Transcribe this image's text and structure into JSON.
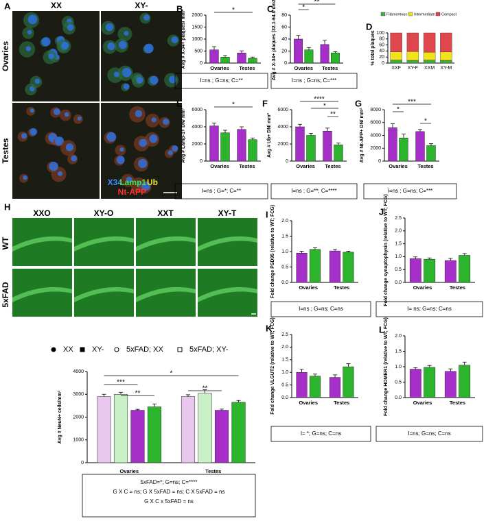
{
  "panel_a": {
    "label": "A",
    "columns": [
      "XX",
      "XY-"
    ],
    "rows": [
      "Ovaries",
      "Testes"
    ],
    "stains": [
      "X34",
      "Lamp1",
      "Ub",
      "Nt-APP"
    ]
  },
  "panel_h_images": {
    "label": "H",
    "columns": [
      "XXO",
      "XY-O",
      "XXT",
      "XY-T"
    ],
    "rows": [
      "WT",
      "5xFAD"
    ]
  },
  "chart_data": [
    {
      "type": "bar",
      "panel": "B",
      "ylabel": "Avg # X-34+ plaques/ mm²",
      "groups": [
        "Ovaries",
        "Testes"
      ],
      "ylim": [
        0,
        2000
      ],
      "yticks": [
        0,
        500,
        1000,
        1500,
        2000
      ],
      "series": [
        {
          "color": "#a52fc8",
          "values": [
            550,
            420
          ],
          "errors": [
            130,
            90
          ]
        },
        {
          "color": "#2cb52c",
          "values": [
            250,
            200
          ],
          "errors": [
            60,
            50
          ]
        }
      ],
      "significance": [
        "*"
      ],
      "stats": [
        "I=ns ; G=ns; C=**"
      ]
    },
    {
      "type": "bar",
      "panel": "C",
      "ylabel": "Avg # X-34+ plaques (32.1-64.0 um2)",
      "groups": [
        "Ovaries",
        "Testes"
      ],
      "ylim": [
        0,
        80
      ],
      "yticks": [
        0,
        20,
        40,
        60,
        80
      ],
      "series": [
        {
          "color": "#a52fc8",
          "values": [
            40,
            31
          ],
          "errors": [
            6,
            7
          ]
        },
        {
          "color": "#2cb52c",
          "values": [
            22,
            17
          ],
          "errors": [
            4,
            2
          ]
        }
      ],
      "significance": [
        "*",
        "**"
      ],
      "stats": [
        "I=ns ; G=ns; C=***"
      ]
    },
    {
      "type": "stacked",
      "panel": "D",
      "ylabel": "% total plaques",
      "categories": [
        "XXF",
        "XY-F",
        "XXM",
        "XY-M"
      ],
      "ylim": [
        0,
        100
      ],
      "yticks": [
        0,
        20,
        40,
        60,
        80,
        100
      ],
      "series": [
        {
          "name": "Filamentous",
          "color": "#3fae3f",
          "values": [
            10,
            9,
            10,
            9
          ]
        },
        {
          "name": "Intermediate",
          "color": "#f2e21a",
          "values": [
            27,
            29,
            26,
            28
          ]
        },
        {
          "name": "Compact",
          "color": "#e0474c",
          "values": [
            63,
            62,
            64,
            63
          ]
        }
      ]
    },
    {
      "type": "bar",
      "panel": "E",
      "ylabel": "Avg # Lamp-1+ DN/ mm²",
      "groups": [
        "Ovaries",
        "Testes"
      ],
      "ylim": [
        0,
        6000
      ],
      "yticks": [
        0,
        2000,
        4000,
        6000
      ],
      "series": [
        {
          "color": "#a52fc8",
          "values": [
            4100,
            3700
          ],
          "errors": [
            350,
            300
          ]
        },
        {
          "color": "#2cb52c",
          "values": [
            3300,
            2500
          ],
          "errors": [
            300,
            200
          ]
        }
      ],
      "significance": [
        "*"
      ],
      "stats": [
        "I=ns ; G=*; C=**"
      ]
    },
    {
      "type": "bar",
      "panel": "F",
      "ylabel": "Avg # Ub+ DN/ mm²",
      "groups": [
        "Ovaries",
        "Testes"
      ],
      "ylim": [
        0,
        6000
      ],
      "yticks": [
        0,
        2000,
        4000,
        6000
      ],
      "series": [
        {
          "color": "#a52fc8",
          "values": [
            4000,
            3500
          ],
          "errors": [
            300,
            350
          ]
        },
        {
          "color": "#2cb52c",
          "values": [
            3000,
            1900
          ],
          "errors": [
            250,
            200
          ]
        }
      ],
      "significance": [
        "****",
        "*",
        "**"
      ],
      "stats": [
        "I=ns ; G=**; C=****"
      ]
    },
    {
      "type": "bar",
      "panel": "G",
      "ylabel": "Avg # Nt-APP+ DN/ mm²",
      "groups": [
        "Ovaries",
        "Testes"
      ],
      "ylim": [
        0,
        8000
      ],
      "yticks": [
        0,
        2000,
        4000,
        6000,
        8000
      ],
      "series": [
        {
          "color": "#a52fc8",
          "values": [
            5200,
            4600
          ],
          "errors": [
            600,
            300
          ]
        },
        {
          "color": "#2cb52c",
          "values": [
            3600,
            2400
          ],
          "errors": [
            600,
            300
          ]
        }
      ],
      "significance": [
        "*",
        "***",
        "*"
      ],
      "stats": [
        "I=ns ; G=ns; C=***"
      ]
    },
    {
      "type": "bar",
      "ylabel": "Avg # NeuN+ cells/mm²",
      "groups": [
        "Ovaries",
        "Testes"
      ],
      "ylim": [
        0,
        4000
      ],
      "yticks": [
        0,
        1000,
        2000,
        3000,
        4000
      ],
      "series": [
        {
          "name": "XX",
          "color": "#e8c6ee",
          "values": [
            2900,
            2900
          ],
          "errors": [
            100,
            80
          ]
        },
        {
          "name": "XY-",
          "color": "#c9f0c6",
          "values": [
            3000,
            3050
          ],
          "errors": [
            90,
            150
          ]
        },
        {
          "name": "5xFAD; XX",
          "color": "#a52fc8",
          "values": [
            2300,
            2300
          ],
          "errors": [
            40,
            50
          ]
        },
        {
          "name": "5xFAD; XY-",
          "color": "#2cb52c",
          "values": [
            2450,
            2650
          ],
          "errors": [
            130,
            80
          ]
        }
      ],
      "significance": [
        "***",
        "*",
        "**",
        "**"
      ],
      "stats": [
        "5xFAD=*;  G=ns; C=****",
        "G X C = ns; G X 5xFAD = ns; C X 5xFAD = ns",
        "G X C x 5xFAD = ns"
      ]
    },
    {
      "type": "bar",
      "panel": "I",
      "ylabel": "Fold change PSD95 (relative to WT; FCG)",
      "groups": [
        "Ovaries",
        "Testes"
      ],
      "ylim": [
        0,
        2
      ],
      "yticks": [
        {
          "value": 0,
          "label": "0.0"
        },
        0.5,
        {
          "value": 1,
          "label": "1.0"
        },
        1.5,
        {
          "value": 2,
          "label": "2.0"
        }
      ],
      "series": [
        {
          "color": "#a52fc8",
          "values": [
            0.95,
            1.02
          ],
          "errors": [
            0.06,
            0.05
          ]
        },
        {
          "color": "#2cb52c",
          "values": [
            1.07,
            0.98
          ],
          "errors": [
            0.05,
            0.03
          ]
        }
      ],
      "stats": [
        "I=ns ; G=ns; C=ns"
      ]
    },
    {
      "type": "bar",
      "panel": "J",
      "ylabel": "Fold change synaptophysin (relative to WT; FCG)",
      "groups": [
        "Ovaries",
        "Testes"
      ],
      "ylim": [
        0,
        2.5
      ],
      "yticks": [
        {
          "value": 0,
          "label": "0.0"
        },
        0.5,
        {
          "value": 1,
          "label": "1.0"
        },
        1.5,
        {
          "value": 2,
          "label": "2.0"
        },
        2.5
      ],
      "series": [
        {
          "color": "#a52fc8",
          "values": [
            0.92,
            0.85
          ],
          "errors": [
            0.07,
            0.08
          ]
        },
        {
          "color": "#2cb52c",
          "values": [
            0.9,
            1.05
          ],
          "errors": [
            0.05,
            0.07
          ]
        }
      ],
      "stats": [
        "I= ns; G=ns; C=ns"
      ]
    },
    {
      "type": "bar",
      "panel": "K",
      "ylabel": "Fold change VLGUT2 (relative to WT; FCG)",
      "groups": [
        "Ovaries",
        "Testes"
      ],
      "ylim": [
        0,
        2.5
      ],
      "yticks": [
        {
          "value": 0,
          "label": "0.0"
        },
        0.5,
        {
          "value": 1,
          "label": "1.0"
        },
        1.5,
        {
          "value": 2,
          "label": "2.0"
        },
        2.5
      ],
      "series": [
        {
          "color": "#a52fc8",
          "values": [
            1.0,
            0.8
          ],
          "errors": [
            0.12,
            0.1
          ]
        },
        {
          "color": "#2cb52c",
          "values": [
            0.85,
            1.22
          ],
          "errors": [
            0.08,
            0.12
          ]
        }
      ],
      "stats": [
        "I= *; G=ns; C=ns"
      ]
    },
    {
      "type": "bar",
      "panel": "L",
      "ylabel": "Fold change HOMER1 (relative to WT; FCG)",
      "groups": [
        "Ovaries",
        "Testes"
      ],
      "ylim": [
        0,
        2
      ],
      "yticks": [
        {
          "value": 0,
          "label": "0.0"
        },
        0.5,
        {
          "value": 1,
          "label": "1.0"
        },
        1.5,
        {
          "value": 2,
          "label": "2.0"
        }
      ],
      "series": [
        {
          "color": "#a52fc8",
          "values": [
            0.92,
            0.85
          ],
          "errors": [
            0.05,
            0.08
          ]
        },
        {
          "color": "#2cb52c",
          "values": [
            0.98,
            1.05
          ],
          "errors": [
            0.06,
            0.1
          ]
        }
      ],
      "stats": [
        "I=ns; G=ns; C=ns"
      ]
    }
  ]
}
